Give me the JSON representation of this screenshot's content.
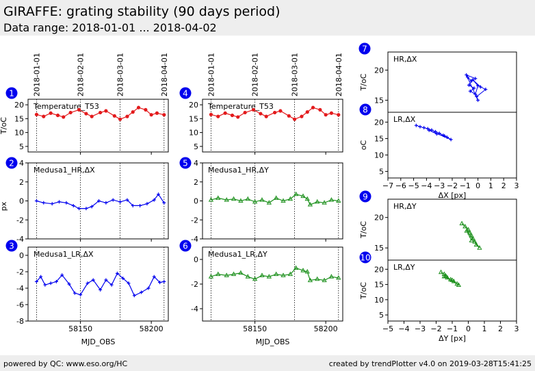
{
  "header": {
    "title": "GIRAFFE: grating stability (90 days period)",
    "subtitle": "Data range: 2018-01-01 ... 2018-04-02"
  },
  "footer": {
    "left": "powered by QC: www.eso.org/HC",
    "right": "created by trendPlotter v4.0 on 2019-03-28T15:41:25"
  },
  "chart_data": [
    {
      "id": 1,
      "type": "scatter",
      "panel_label": "Temperature_T53",
      "ylabel": "T/oC",
      "xlim": [
        58113,
        58212
      ],
      "ylim": [
        3,
        22
      ],
      "yticks": [
        5,
        10,
        15,
        20
      ],
      "date_ticks": [
        {
          "label": "2018-01-01",
          "x": 58119
        },
        {
          "label": "2018-02-01",
          "x": 58150
        },
        {
          "label": "2018-03-01",
          "x": 58178
        },
        {
          "label": "2018-04-01",
          "x": 58209
        }
      ],
      "color": "#e31a1c",
      "marker": "circle",
      "series_points": [
        [
          58119,
          16.5
        ],
        [
          58124,
          15.8
        ],
        [
          58129,
          17.0
        ],
        [
          58134,
          16.2
        ],
        [
          58138,
          15.6
        ],
        [
          58143,
          17.2
        ],
        [
          58149,
          18.2
        ],
        [
          58154,
          16.8
        ],
        [
          58158,
          15.8
        ],
        [
          58164,
          17.2
        ],
        [
          58168,
          17.8
        ],
        [
          58174,
          16.0
        ],
        [
          58178,
          14.8
        ],
        [
          58183,
          15.8
        ],
        [
          58187,
          17.4
        ],
        [
          58191,
          19.0
        ],
        [
          58196,
          18.2
        ],
        [
          58200,
          16.4
        ],
        [
          58204,
          17.0
        ],
        [
          58209,
          16.4
        ]
      ]
    },
    {
      "id": 2,
      "type": "scatter",
      "panel_label": "Medusa1_HR,ΔX",
      "ylabel": "px",
      "xlim": [
        58113,
        58212
      ],
      "ylim": [
        -4,
        4
      ],
      "yticks": [
        -4,
        -2,
        0,
        2,
        4
      ],
      "color": "#0000ee",
      "marker": "plus",
      "series_points": [
        [
          58119,
          0.0
        ],
        [
          58124,
          -0.2
        ],
        [
          58130,
          -0.3
        ],
        [
          58135,
          -0.1
        ],
        [
          58140,
          -0.2
        ],
        [
          58145,
          -0.5
        ],
        [
          58149,
          -0.8
        ],
        [
          58154,
          -0.8
        ],
        [
          58158,
          -0.6
        ],
        [
          58163,
          0.0
        ],
        [
          58168,
          -0.2
        ],
        [
          58173,
          0.1
        ],
        [
          58178,
          -0.1
        ],
        [
          58183,
          0.1
        ],
        [
          58187,
          -0.5
        ],
        [
          58192,
          -0.5
        ],
        [
          58197,
          -0.3
        ],
        [
          58202,
          0.1
        ],
        [
          58205,
          0.7
        ],
        [
          58209,
          -0.2
        ]
      ]
    },
    {
      "id": 3,
      "type": "scatter",
      "panel_label": "Medusa1_LR,ΔX",
      "ylabel": "",
      "xlim": [
        58113,
        58212
      ],
      "ylim": [
        -8,
        1
      ],
      "yticks": [
        -8,
        -6,
        -4,
        -2,
        0
      ],
      "color": "#0000ee",
      "marker": "plus",
      "series_points": [
        [
          58119,
          -3.2
        ],
        [
          58122,
          -2.6
        ],
        [
          58125,
          -3.6
        ],
        [
          58129,
          -3.4
        ],
        [
          58133,
          -3.2
        ],
        [
          58137,
          -2.4
        ],
        [
          58142,
          -3.5
        ],
        [
          58146,
          -4.6
        ],
        [
          58150,
          -4.8
        ],
        [
          58155,
          -3.4
        ],
        [
          58159,
          -3.0
        ],
        [
          58164,
          -4.2
        ],
        [
          58168,
          -3.0
        ],
        [
          58172,
          -3.6
        ],
        [
          58176,
          -2.2
        ],
        [
          58180,
          -2.8
        ],
        [
          58184,
          -3.4
        ],
        [
          58188,
          -4.9
        ],
        [
          58193,
          -4.5
        ],
        [
          58198,
          -4.0
        ],
        [
          58202,
          -2.6
        ],
        [
          58206,
          -3.3
        ],
        [
          58209,
          -3.2
        ]
      ]
    },
    {
      "id": 4,
      "type": "scatter",
      "panel_label": "Temperature_T53",
      "ylabel": "",
      "xlim": [
        58113,
        58212
      ],
      "ylim": [
        3,
        22
      ],
      "yticks": [
        5,
        10,
        15,
        20
      ],
      "date_ticks": [
        {
          "label": "2018-01-01",
          "x": 58119
        },
        {
          "label": "2018-02-01",
          "x": 58150
        },
        {
          "label": "2018-03-01",
          "x": 58178
        },
        {
          "label": "2018-04-01",
          "x": 58209
        }
      ],
      "color": "#e31a1c",
      "marker": "circle",
      "series_points": [
        [
          58119,
          16.5
        ],
        [
          58124,
          15.8
        ],
        [
          58129,
          17.0
        ],
        [
          58134,
          16.2
        ],
        [
          58138,
          15.6
        ],
        [
          58143,
          17.2
        ],
        [
          58149,
          18.2
        ],
        [
          58154,
          16.8
        ],
        [
          58158,
          15.8
        ],
        [
          58164,
          17.2
        ],
        [
          58168,
          17.8
        ],
        [
          58174,
          16.0
        ],
        [
          58178,
          14.8
        ],
        [
          58183,
          15.8
        ],
        [
          58187,
          17.4
        ],
        [
          58191,
          19.0
        ],
        [
          58196,
          18.2
        ],
        [
          58200,
          16.4
        ],
        [
          58204,
          17.0
        ],
        [
          58209,
          16.4
        ]
      ]
    },
    {
      "id": 5,
      "type": "scatter",
      "panel_label": "Medusa1_HR,ΔY",
      "ylabel": "",
      "xlim": [
        58113,
        58212
      ],
      "ylim": [
        -4,
        4
      ],
      "yticks": [
        -4,
        -2,
        0,
        2,
        4
      ],
      "color": "#1a8f1a",
      "marker": "triangle",
      "series_points": [
        [
          58119,
          0.1
        ],
        [
          58124,
          0.3
        ],
        [
          58130,
          0.1
        ],
        [
          58135,
          0.2
        ],
        [
          58140,
          0.0
        ],
        [
          58145,
          0.2
        ],
        [
          58150,
          -0.1
        ],
        [
          58155,
          0.1
        ],
        [
          58160,
          -0.2
        ],
        [
          58165,
          0.3
        ],
        [
          58170,
          0.0
        ],
        [
          58175,
          0.2
        ],
        [
          58179,
          0.7
        ],
        [
          58184,
          0.5
        ],
        [
          58187,
          0.2
        ],
        [
          58189,
          -0.4
        ],
        [
          58194,
          -0.1
        ],
        [
          58199,
          -0.2
        ],
        [
          58204,
          0.1
        ],
        [
          58209,
          0.0
        ]
      ]
    },
    {
      "id": 6,
      "type": "scatter",
      "panel_label": "Medusa1_LR,ΔY",
      "ylabel": "",
      "xlabel": "MJD_OBS",
      "xlim": [
        58113,
        58212
      ],
      "ylim": [
        -5,
        1
      ],
      "yticks": [
        -4,
        -2,
        0
      ],
      "color": "#1a8f1a",
      "marker": "triangle",
      "series_points": [
        [
          58119,
          -1.4
        ],
        [
          58124,
          -1.2
        ],
        [
          58130,
          -1.3
        ],
        [
          58135,
          -1.2
        ],
        [
          58140,
          -1.1
        ],
        [
          58145,
          -1.4
        ],
        [
          58150,
          -1.6
        ],
        [
          58155,
          -1.3
        ],
        [
          58160,
          -1.4
        ],
        [
          58165,
          -1.2
        ],
        [
          58170,
          -1.3
        ],
        [
          58175,
          -1.2
        ],
        [
          58179,
          -0.7
        ],
        [
          58184,
          -0.9
        ],
        [
          58187,
          -1.0
        ],
        [
          58189,
          -1.7
        ],
        [
          58194,
          -1.6
        ],
        [
          58199,
          -1.7
        ],
        [
          58204,
          -1.4
        ],
        [
          58209,
          -1.5
        ]
      ]
    },
    {
      "id": 7,
      "type": "scatter",
      "panel_label": "HR,ΔX",
      "ylabel": "T/oC",
      "xlim": [
        -7,
        3
      ],
      "ylim": [
        13,
        23
      ],
      "yticks": [
        15,
        20
      ],
      "color": "#0000ee",
      "marker": "plus",
      "series_points": [
        [
          -0.8,
          18.8
        ],
        [
          -0.5,
          18.2
        ],
        [
          -0.7,
          17.5
        ],
        [
          -0.3,
          17.0
        ],
        [
          -0.6,
          16.5
        ],
        [
          -0.2,
          16.0
        ],
        [
          0.0,
          17.4
        ],
        [
          -0.4,
          18.4
        ],
        [
          0.2,
          17.2
        ],
        [
          0.6,
          16.8
        ],
        [
          -0.1,
          15.6
        ],
        [
          0.0,
          15.0
        ],
        [
          -0.9,
          19.2
        ],
        [
          -0.2,
          18.6
        ]
      ]
    },
    {
      "id": 8,
      "type": "scatter",
      "panel_label": "LR,ΔX",
      "ylabel": "oC",
      "xlabel": "ΔX [px]",
      "xlim": [
        -7,
        3
      ],
      "ylim": [
        3,
        23
      ],
      "yticks": [
        5,
        10,
        15,
        20
      ],
      "xticks": [
        -7,
        -6,
        -5,
        -4,
        -3,
        -2,
        -1,
        0,
        1,
        2,
        3
      ],
      "color": "#0000ee",
      "marker": "plus",
      "series_points": [
        [
          -4.8,
          19.0
        ],
        [
          -4.5,
          18.6
        ],
        [
          -4.2,
          18.3
        ],
        [
          -3.9,
          18.0
        ],
        [
          -3.6,
          17.6
        ],
        [
          -3.3,
          17.1
        ],
        [
          -3.0,
          16.6
        ],
        [
          -2.7,
          16.0
        ],
        [
          -2.4,
          15.4
        ],
        [
          -2.1,
          14.7
        ],
        [
          -3.8,
          17.5
        ],
        [
          -3.2,
          16.4
        ],
        [
          -2.6,
          15.8
        ]
      ]
    },
    {
      "id": 9,
      "type": "scatter",
      "panel_label": "HR,ΔY",
      "ylabel": "T/oC",
      "xlim": [
        -5,
        3
      ],
      "ylim": [
        13,
        23
      ],
      "yticks": [
        15,
        20
      ],
      "color": "#1a8f1a",
      "marker": "triangle",
      "series_points": [
        [
          -0.4,
          19.0
        ],
        [
          -0.2,
          18.5
        ],
        [
          0.0,
          18.0
        ],
        [
          0.1,
          17.5
        ],
        [
          0.2,
          17.0
        ],
        [
          0.3,
          16.5
        ],
        [
          0.4,
          16.0
        ],
        [
          0.5,
          15.5
        ],
        [
          0.7,
          15.0
        ],
        [
          -0.1,
          17.8
        ],
        [
          0.2,
          16.2
        ]
      ]
    },
    {
      "id": 10,
      "type": "scatter",
      "panel_label": "LR,ΔY",
      "ylabel": "T/oC",
      "xlabel": "ΔY [px]",
      "xlim": [
        -5,
        3
      ],
      "ylim": [
        3,
        23
      ],
      "yticks": [
        5,
        10,
        15,
        20
      ],
      "xticks": [
        -5,
        -4,
        -3,
        -2,
        -1,
        0,
        1,
        2,
        3
      ],
      "color": "#1a8f1a",
      "marker": "triangle",
      "series_points": [
        [
          -1.7,
          19.0
        ],
        [
          -1.5,
          18.4
        ],
        [
          -1.4,
          17.8
        ],
        [
          -1.3,
          17.2
        ],
        [
          -1.1,
          16.6
        ],
        [
          -0.9,
          16.0
        ],
        [
          -0.7,
          15.2
        ],
        [
          -0.6,
          14.8
        ],
        [
          -1.5,
          17.6
        ],
        [
          -1.0,
          16.4
        ]
      ]
    }
  ],
  "shared_xaxis": {
    "ticks": [
      58150,
      58200
    ],
    "tick_labels": [
      "58150",
      "58200"
    ],
    "label": "MJD_OBS"
  }
}
